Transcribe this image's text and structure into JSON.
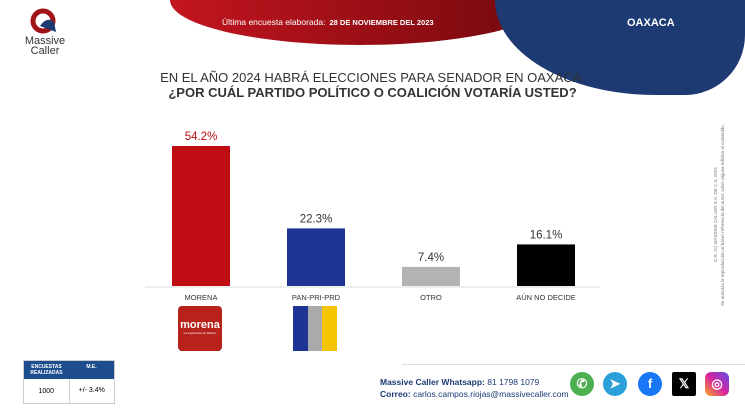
{
  "header": {
    "survey_label": "Última encuesta elaborada:",
    "survey_date": "28 DE NOVIEMBRE DEL 2023",
    "state": "OAXACA"
  },
  "logo": {
    "line1": "Massive",
    "line2": "Caller"
  },
  "chart_data": {
    "type": "bar",
    "title": "EN EL AÑO 2024 HABRÁ ELECCIONES PARA SENADOR EN OAXACA.",
    "subtitle": "¿POR CUÁL PARTIDO POLÍTICO O COALICIÓN VOTARÍA USTED?",
    "categories": [
      "MORENA",
      "PAN-PRI-PRD",
      "OTRO",
      "AÚN NO DECIDE"
    ],
    "values": [
      54.2,
      22.3,
      7.4,
      16.1
    ],
    "data_labels": [
      "54.2%",
      "22.3%",
      "7.4%",
      "16.1%"
    ],
    "colors": [
      "#c00d14",
      "#1f3595",
      "#b3b3b3",
      "#000000"
    ],
    "ylim": [
      0,
      60
    ],
    "grid": false
  },
  "party_logos": {
    "morena": "morena",
    "morena_sub": "La esperanza de México"
  },
  "stats": {
    "col1": "ENCUESTAS REALIZADAS",
    "col2": "M.E.",
    "surveys": "1000",
    "margin": "+/- 3.4%"
  },
  "contact": {
    "whatsapp_label": "Massive Caller Whatsapp:",
    "whatsapp": "81 1798 1079",
    "email_label": "Correo:",
    "email": "carlos.campos.riojas@massivecaller.com"
  },
  "social": [
    {
      "icon": "whatsapp-icon",
      "color": "#4caf50"
    },
    {
      "icon": "telegram-icon",
      "color": "#2a9fd8"
    },
    {
      "icon": "facebook-icon",
      "color": "#1877f2"
    },
    {
      "icon": "x-icon",
      "color": "#000000"
    },
    {
      "icon": "instagram-icon",
      "color": "#d6249f"
    }
  ],
  "side": {
    "line1": "D.R. (C) MASSIVE CALLER S.A. DE C.V. 2023",
    "line2": "Se autoriza la reproducción al hacer referencia del autor, salvo alguna edición al contenido."
  }
}
